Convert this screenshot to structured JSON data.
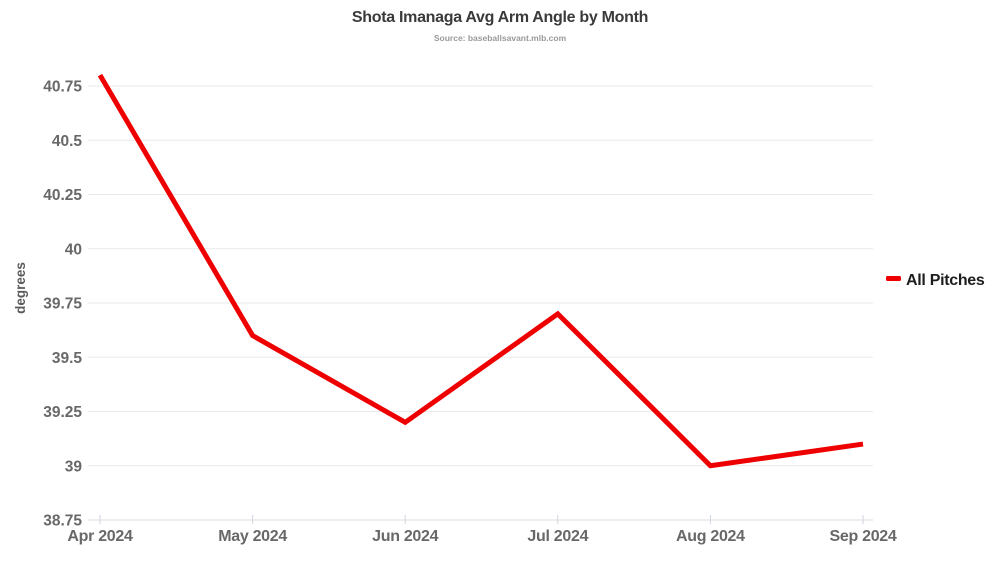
{
  "chart_data": {
    "type": "line",
    "title": "Shota Imanaga Avg Arm Angle by Month",
    "subtitle": "Source: baseballsavant.mlb.com",
    "xlabel": "",
    "ylabel": "degrees",
    "categories": [
      "Apr 2024",
      "May 2024",
      "Jun 2024",
      "Jul 2024",
      "Aug 2024",
      "Sep 2024"
    ],
    "series": [
      {
        "name": "All Pitches",
        "values": [
          40.8,
          39.6,
          39.2,
          39.7,
          39.0,
          39.1
        ],
        "color": "#ee0000"
      }
    ],
    "ylim": [
      38.75,
      40.75
    ],
    "ytick_step": 0.25,
    "ytick_labels": [
      "38.75",
      "39",
      "39.25",
      "39.5",
      "39.75",
      "40",
      "40.25",
      "40.5",
      "40.75"
    ],
    "grid": true,
    "legend_position": "right"
  }
}
